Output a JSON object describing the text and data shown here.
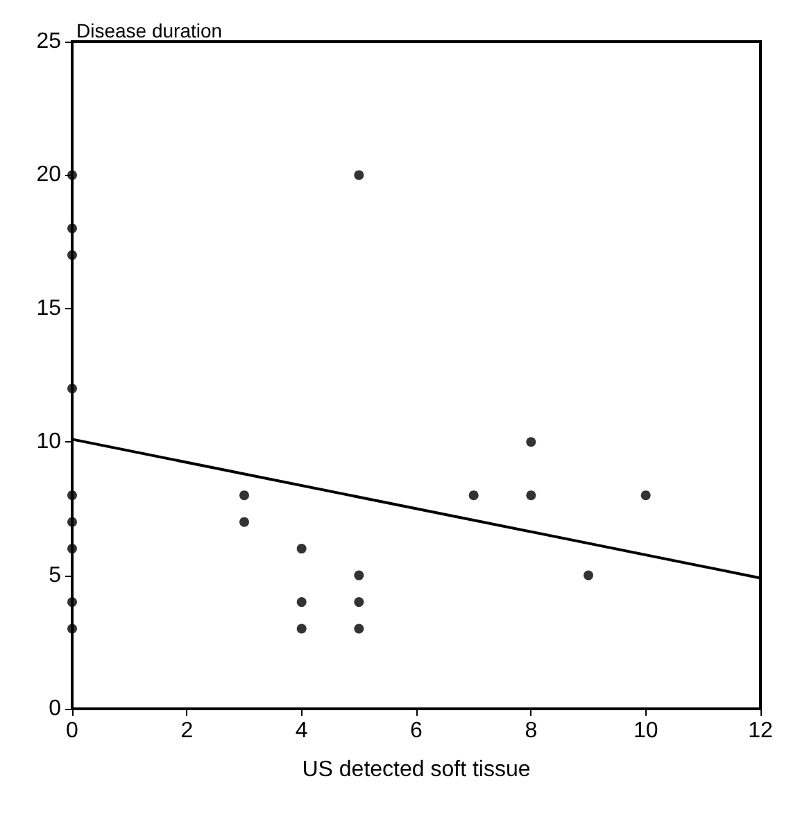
{
  "chart_data": {
    "type": "scatter",
    "xlabel": "US detected soft tissue",
    "ylabel": "Disease duration",
    "xlim": [
      0,
      12
    ],
    "xticks": [
      0,
      2,
      4,
      6,
      8,
      10,
      12
    ],
    "ylim": [
      0,
      25
    ],
    "yticks": [
      0,
      5,
      10,
      15,
      20,
      25
    ],
    "grid": false,
    "series": [
      {
        "marker": "circle",
        "color": "#000000",
        "x": [
          0,
          0,
          0,
          0,
          0,
          0,
          0,
          0,
          0,
          3,
          3,
          4,
          4,
          4,
          5,
          5,
          5,
          5,
          7,
          8,
          8,
          9,
          10
        ],
        "values": [
          20,
          18,
          17,
          12,
          8,
          7,
          6,
          4,
          3,
          8,
          7,
          6,
          4,
          3,
          20,
          5,
          4,
          3,
          8,
          10,
          8,
          5,
          8
        ]
      },
      {
        "type": "line",
        "marker": "none",
        "color": "#000000",
        "x": [
          0,
          12
        ],
        "values": [
          10.1,
          4.9
        ]
      }
    ]
  }
}
